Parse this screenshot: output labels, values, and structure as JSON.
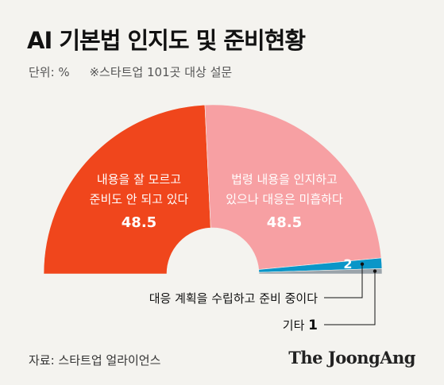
{
  "header": {
    "title": "AI 기본법 인지도 및 준비현황",
    "unit": "단위: %",
    "note": "※스타트업 101곳 대상 설문"
  },
  "footer": {
    "source": "자료: 스타트업 얼라이언스",
    "brand": "The JoongAng"
  },
  "chart_data": {
    "type": "pie",
    "shape": "semicircle-donut",
    "slices": [
      {
        "label_lines": [
          "내용을 잘 모르고",
          "준비도 안 되고 있다"
        ],
        "value": 48.5,
        "value_label": "48.5",
        "color": "#f0461c"
      },
      {
        "label_lines": [
          "법령 내용을 인지하고",
          "있으나 대응은 미흡하다"
        ],
        "value": 48.5,
        "value_label": "48.5",
        "color": "#f7a0a3"
      },
      {
        "label": "대응 계획을 수립하고 준비 중이다",
        "value": 2,
        "value_label": "2",
        "color": "#0a96c8"
      },
      {
        "label": "기타",
        "value": 1,
        "value_label": "1",
        "color": "#9aa3aa"
      }
    ]
  }
}
